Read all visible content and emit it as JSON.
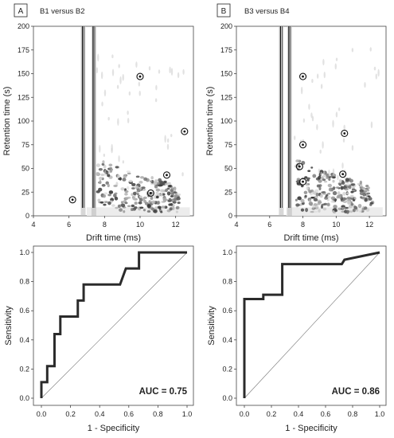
{
  "chart_data": [
    {
      "id": "A",
      "type": "heatmap",
      "panel_label": "A",
      "title": "B1 versus B2",
      "xlabel": "Drift time (ms)",
      "ylabel": "Retention time (s)",
      "xlim": [
        4,
        13
      ],
      "ylim": [
        0,
        200
      ],
      "xticks": [
        4,
        6,
        8,
        10,
        12
      ],
      "yticks": [
        0,
        25,
        50,
        75,
        100,
        125,
        150,
        175,
        200
      ],
      "vertical_lines_x": [
        6.8,
        7.4
      ],
      "marked_spots": [
        {
          "x": 6.2,
          "y": 17
        },
        {
          "x": 10.0,
          "y": 147
        },
        {
          "x": 12.5,
          "y": 89
        },
        {
          "x": 11.5,
          "y": 43
        },
        {
          "x": 10.6,
          "y": 24
        }
      ]
    },
    {
      "id": "B",
      "type": "heatmap",
      "panel_label": "B",
      "title": "B3 versus B4",
      "xlabel": "Drift time (ms)",
      "ylabel": "Retention time (s)",
      "xlim": [
        4,
        13
      ],
      "ylim": [
        0,
        200
      ],
      "xticks": [
        4,
        6,
        8,
        10,
        12
      ],
      "yticks": [
        0,
        25,
        50,
        75,
        100,
        125,
        150,
        175,
        200
      ],
      "vertical_lines_x": [
        6.7,
        7.2
      ],
      "marked_spots": [
        {
          "x": 8.0,
          "y": 147
        },
        {
          "x": 8.0,
          "y": 75
        },
        {
          "x": 7.8,
          "y": 52
        },
        {
          "x": 8.0,
          "y": 36
        },
        {
          "x": 10.5,
          "y": 87
        },
        {
          "x": 10.4,
          "y": 44
        }
      ]
    },
    {
      "id": "C",
      "type": "line",
      "xlabel": "1 - Specificity",
      "ylabel": "Sensitivity",
      "xlim": [
        0,
        1
      ],
      "ylim": [
        0,
        1
      ],
      "xticks": [
        "0.0",
        "0.2",
        "0.4",
        "0.6",
        "0.8",
        "1.0"
      ],
      "yticks": [
        "0.0",
        "0.2",
        "0.4",
        "0.6",
        "0.8",
        "1.0"
      ],
      "annotation": "AUC = 0.75",
      "roc": [
        [
          0,
          0
        ],
        [
          0,
          0.11
        ],
        [
          0.04,
          0.11
        ],
        [
          0.04,
          0.22
        ],
        [
          0.09,
          0.22
        ],
        [
          0.09,
          0.44
        ],
        [
          0.13,
          0.44
        ],
        [
          0.13,
          0.56
        ],
        [
          0.25,
          0.56
        ],
        [
          0.25,
          0.67
        ],
        [
          0.29,
          0.67
        ],
        [
          0.29,
          0.78
        ],
        [
          0.54,
          0.78
        ],
        [
          0.58,
          0.89
        ],
        [
          0.67,
          0.89
        ],
        [
          0.67,
          1.0
        ],
        [
          1,
          1
        ]
      ],
      "diagonal": [
        [
          0,
          0
        ],
        [
          1,
          1
        ]
      ]
    },
    {
      "id": "D",
      "type": "line",
      "xlabel": "1 - Specificity",
      "ylabel": "Sensitivity",
      "xlim": [
        0,
        1
      ],
      "ylim": [
        0,
        1
      ],
      "xticks": [
        "0.0",
        "0.2",
        "0.4",
        "0.6",
        "0.8",
        "1.0"
      ],
      "yticks": [
        "0.0",
        "0.2",
        "0.4",
        "0.6",
        "0.8",
        "1.0"
      ],
      "annotation": "AUC = 0.86",
      "roc": [
        [
          0,
          0
        ],
        [
          0,
          0.68
        ],
        [
          0.14,
          0.68
        ],
        [
          0.14,
          0.71
        ],
        [
          0.28,
          0.71
        ],
        [
          0.28,
          0.92
        ],
        [
          0.72,
          0.92
        ],
        [
          0.74,
          0.95
        ],
        [
          1,
          1
        ]
      ],
      "diagonal": [
        [
          0,
          0
        ],
        [
          1,
          1
        ]
      ]
    }
  ]
}
